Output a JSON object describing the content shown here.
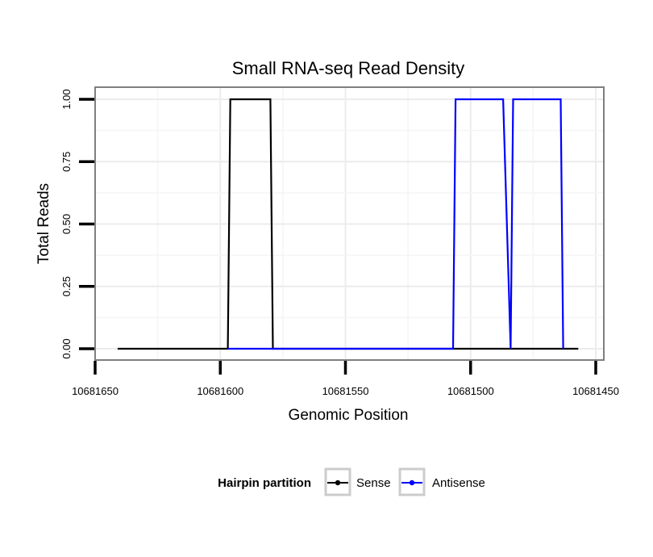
{
  "chart_data": {
    "type": "line",
    "title": "Small RNA-seq Read Density",
    "xlabel": "Genomic Position",
    "ylabel": "Total Reads",
    "x_reversed": true,
    "xlim": [
      10681650,
      10681450
    ],
    "ylim": [
      0,
      1
    ],
    "x_ticks": [
      10681650,
      10681600,
      10681550,
      10681500,
      10681450
    ],
    "x_tick_labels": [
      "10681650",
      "10681600",
      "10681550",
      "10681500",
      "10681450"
    ],
    "y_ticks": [
      0,
      0.25,
      0.5,
      0.75,
      1
    ],
    "y_tick_labels": [
      "0.00",
      "0.25",
      "0.50",
      "0.75",
      "1.00"
    ],
    "grid": true,
    "legend": {
      "title": "Hairpin partition",
      "placement": "bottom",
      "entries": [
        "Sense",
        "Antisense"
      ]
    },
    "series": [
      {
        "name": "Sense",
        "color": "#000000",
        "x": [
          10681641,
          10681597,
          10681596,
          10681580,
          10681579,
          10681457
        ],
        "y": [
          0,
          0,
          1,
          1,
          0,
          0
        ]
      },
      {
        "name": "Antisense",
        "color": "#0000ff",
        "x": [
          10681597,
          10681579,
          10681579,
          10681507,
          10681506,
          10681487,
          10681484,
          10681483,
          10681464,
          10681463
        ],
        "y": [
          0,
          0,
          0,
          0,
          1,
          1,
          0,
          1,
          1,
          0
        ]
      }
    ]
  }
}
